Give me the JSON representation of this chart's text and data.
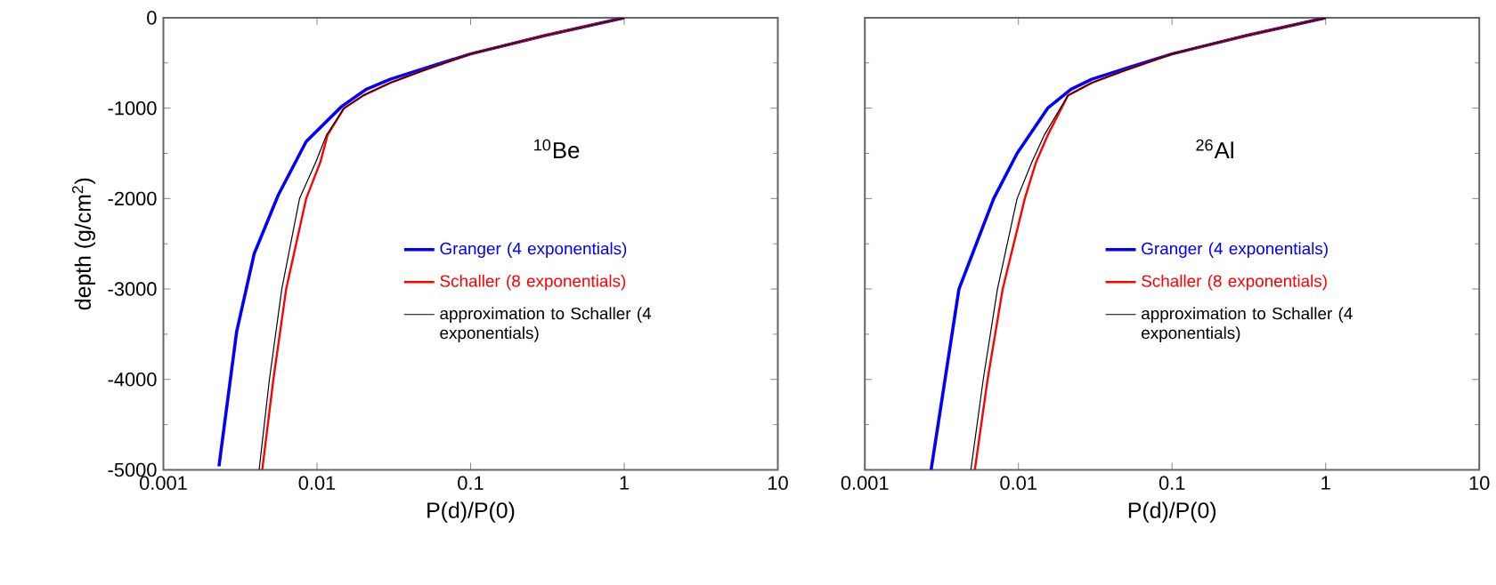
{
  "chart_data": [
    {
      "type": "line",
      "annotations": [
        "$^{10}$Be"
      ],
      "xlabel": "P(d)/P(0)",
      "ylabel": "depth (g/cm$^{2}$)",
      "log": "x",
      "xlim": [
        0.001,
        10
      ],
      "xticks": [
        0.001,
        0.01,
        0.1,
        1,
        10
      ],
      "ylim": [
        -5000,
        0
      ],
      "yticks": [
        -5000,
        -4000,
        -3000,
        -2000,
        -1000,
        0
      ],
      "legend": "right",
      "marker": "none",
      "line_style": "solid",
      "grid": false,
      "series": [
        {
          "name": "Granger (4 exponentials)",
          "color": "#0000ff",
          "x": [
            1,
            0.3,
            0.1,
            0.05,
            0.03,
            0.021,
            0.0145,
            0.0085,
            0.0056,
            0.0039,
            0.003,
            0.0023
          ],
          "values": [
            0,
            -200,
            -400,
            -560,
            -680,
            -790,
            -980,
            -1370,
            -1960,
            -2610,
            -3470,
            -4960
          ]
        },
        {
          "name": "Schaller (8 exponentials)",
          "color": "#ff0000",
          "x": [
            1,
            0.3,
            0.1,
            0.05,
            0.03,
            0.02,
            0.015,
            0.0117,
            0.0105,
            0.0085,
            0.0063,
            0.0052,
            0.0044
          ],
          "values": [
            0,
            -200,
            -400,
            -580,
            -720,
            -860,
            -1000,
            -1300,
            -1600,
            -2000,
            -3000,
            -4000,
            -5000
          ]
        },
        {
          "name": "approximation to Schaller (4 exponentials)",
          "color": "#000000",
          "x": [
            1,
            0.3,
            0.1,
            0.05,
            0.03,
            0.02,
            0.015,
            0.0115,
            0.0098,
            0.0077,
            0.0059,
            0.0049,
            0.0042
          ],
          "values": [
            0,
            -200,
            -400,
            -580,
            -720,
            -860,
            -1000,
            -1300,
            -1600,
            -2000,
            -3000,
            -4000,
            -5000
          ]
        }
      ]
    },
    {
      "type": "line",
      "annotations": [
        "$^{26}$Al"
      ],
      "xlabel": "P(d)/P(0)",
      "log": "x",
      "xlim": [
        0.001,
        10
      ],
      "xticks": [
        0.001,
        0.01,
        0.1,
        1,
        10
      ],
      "ylim": [
        -5000,
        0
      ],
      "yticks": [
        -5000,
        -4000,
        -3000,
        -2000,
        -1000,
        0
      ],
      "tick_labels": "x",
      "legend": "right",
      "marker": "none",
      "line_style": "solid",
      "grid": false,
      "series": [
        {
          "name": "Granger (4 exponentials)",
          "color": "#0000ff",
          "x": [
            1,
            0.3,
            0.1,
            0.05,
            0.03,
            0.022,
            0.0155,
            0.0098,
            0.0069,
            0.0041,
            0.0027
          ],
          "values": [
            0,
            -200,
            -400,
            -560,
            -680,
            -790,
            -1000,
            -1500,
            -2000,
            -3000,
            -5000
          ]
        },
        {
          "name": "Schaller (8 exponentials)",
          "color": "#ff0000",
          "x": [
            1,
            0.3,
            0.1,
            0.05,
            0.03,
            0.021,
            0.0155,
            0.013,
            0.011,
            0.0079,
            0.0063,
            0.0052
          ],
          "values": [
            0,
            -200,
            -400,
            -580,
            -720,
            -860,
            -1300,
            -1600,
            -2000,
            -3000,
            -4000,
            -5000
          ]
        },
        {
          "name": "approximation to Schaller (4 exponentials)",
          "color": "#000000",
          "x": [
            1,
            0.3,
            0.1,
            0.05,
            0.03,
            0.021,
            0.0147,
            0.0122,
            0.0098,
            0.0073,
            0.0059,
            0.0049
          ],
          "values": [
            0,
            -200,
            -400,
            -580,
            -720,
            -860,
            -1300,
            -1600,
            -2000,
            -3000,
            -4000,
            -5000
          ]
        }
      ]
    }
  ]
}
